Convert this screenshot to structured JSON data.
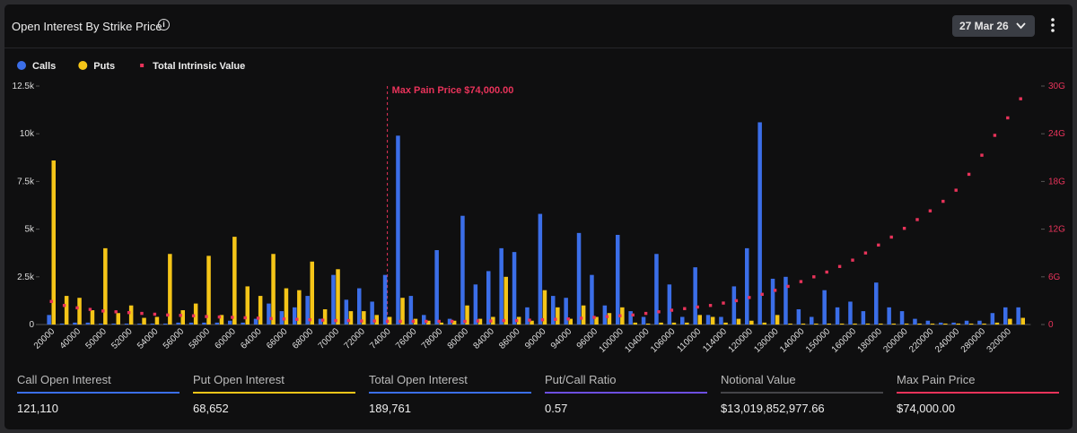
{
  "header": {
    "title": "Open Interest By Strike Price",
    "date": "27 Mar 26"
  },
  "chart_data": {
    "type": "bar",
    "categories": [
      "20000",
      null,
      "40000",
      null,
      "50000",
      null,
      "52000",
      null,
      "54000",
      null,
      "56000",
      null,
      "58000",
      null,
      "60000",
      null,
      "64000",
      null,
      "66000",
      null,
      "68000",
      null,
      "70000",
      null,
      "72000",
      null,
      "74000",
      null,
      "76000",
      null,
      "78000",
      null,
      "80000",
      null,
      "84000",
      null,
      "86000",
      null,
      "90000",
      null,
      "94000",
      null,
      "96000",
      null,
      "100000",
      null,
      "104000",
      null,
      "106000",
      null,
      "110000",
      null,
      "114000",
      null,
      "120000",
      null,
      "130000",
      null,
      "140000",
      null,
      "150000",
      null,
      "160000",
      null,
      "180000",
      null,
      "200000",
      null,
      "220000",
      null,
      "240000",
      null,
      "280000",
      null,
      "320000",
      null
    ],
    "series": [
      {
        "name": "Calls",
        "color": "#3b6ee8",
        "values": [
          500,
          50,
          100,
          100,
          50,
          50,
          50,
          50,
          50,
          50,
          100,
          100,
          100,
          100,
          200,
          100,
          300,
          1100,
          700,
          900,
          1500,
          300,
          2600,
          1300,
          1900,
          1200,
          2600,
          9900,
          1500,
          500,
          3900,
          300,
          5700,
          2100,
          2800,
          4000,
          3800,
          900,
          5800,
          1500,
          1400,
          4800,
          2600,
          1000,
          4700,
          700,
          400,
          3700,
          2100,
          400,
          3000,
          500,
          400,
          2000,
          4000,
          10600,
          2400,
          2500,
          800,
          400,
          1800,
          900,
          1200,
          700,
          2200,
          900,
          700,
          300,
          200,
          100,
          100,
          200,
          200,
          600,
          900,
          900
        ]
      },
      {
        "name": "Puts",
        "color": "#f5c518",
        "values": [
          8600,
          1500,
          1400,
          750,
          4000,
          600,
          1000,
          350,
          400,
          3700,
          750,
          1100,
          3600,
          500,
          4600,
          2000,
          1500,
          3700,
          1900,
          1800,
          3300,
          800,
          2900,
          700,
          700,
          500,
          400,
          1400,
          300,
          200,
          100,
          200,
          1000,
          300,
          400,
          2500,
          400,
          200,
          1800,
          900,
          300,
          1000,
          400,
          600,
          900,
          100,
          50,
          100,
          100,
          100,
          500,
          400,
          100,
          300,
          200,
          100,
          500,
          50,
          50,
          50,
          50,
          50,
          50,
          50,
          50,
          50,
          50,
          50,
          50,
          50,
          50,
          50,
          50,
          100,
          300,
          350
        ]
      },
      {
        "name": "Total Intrinsic Value",
        "color": "#e8335a",
        "axis": "y2",
        "values": [
          2900000000.0,
          2400000000.0,
          2100000000.0,
          1900000000.0,
          1700000000.0,
          1600000000.0,
          1500000000.0,
          1400000000.0,
          1300000000.0,
          1200000000.0,
          1150000000.0,
          1100000000.0,
          1000000000.0,
          950000000.0,
          900000000.0,
          850000000.0,
          800000000.0,
          750000000.0,
          700000000.0,
          650000000.0,
          600000000.0,
          550000000.0,
          500000000.0,
          500000000.0,
          450000000.0,
          450000000.0,
          400000000.0,
          400000000.0,
          400000000.0,
          400000000.0,
          400000000.0,
          400000000.0,
          400000000.0,
          450000000.0,
          450000000.0,
          500000000.0,
          500000000.0,
          550000000.0,
          600000000.0,
          650000000.0,
          700000000.0,
          800000000.0,
          900000000.0,
          1000000000.0,
          1100000000.0,
          1200000000.0,
          1400000000.0,
          1600000000.0,
          1800000000.0,
          2000000000.0,
          2200000000.0,
          2400000000.0,
          2700000000.0,
          3000000000.0,
          3400000000.0,
          3800000000.0,
          4300000000.0,
          4800000000.0,
          5400000000.0,
          6000000000.0,
          6600000000.0,
          7300000000.0,
          8100000000.0,
          9000000000.0,
          10000000000.0,
          11000000000.0,
          12100000000.0,
          13200000000.0,
          14300000000.0,
          15500000000.0,
          16900000000.0,
          18900000000.0,
          21300000000.0,
          23800000000.0,
          26000000000.0,
          28400000000.0
        ]
      }
    ],
    "ylim": [
      0,
      12500
    ],
    "yticks": [
      0,
      {
        "value": 2500,
        "label": "2.5k"
      },
      {
        "value": 5000,
        "label": "5k"
      },
      {
        "value": 7500,
        "label": "7.5k"
      },
      {
        "value": 10000,
        "label": "10k"
      },
      {
        "value": 12500,
        "label": "12.5k"
      }
    ],
    "y2lim": [
      0,
      30000000000
    ],
    "y2ticks": [
      0,
      {
        "value": 6000000000,
        "label": "6G"
      },
      {
        "value": 12000000000,
        "label": "12G"
      },
      {
        "value": 18000000000,
        "label": "18G"
      },
      {
        "value": 24000000000,
        "label": "24G"
      },
      {
        "value": 30000000000,
        "label": "30G"
      }
    ],
    "annotation": {
      "text": "Max Pain Price $74,000.00",
      "at": "74000"
    },
    "legend": "top-left"
  },
  "stats": [
    {
      "label": "Call Open Interest",
      "value": "121,110",
      "color": "#3b6ee8"
    },
    {
      "label": "Put Open Interest",
      "value": "68,652",
      "color": "#f5c518"
    },
    {
      "label": "Total Open Interest",
      "value": "189,761",
      "color": "#3b6ee8"
    },
    {
      "label": "Put/Call Ratio",
      "value": "0.57",
      "color": "#6d4fe0"
    },
    {
      "label": "Notional Value",
      "value": "$13,019,852,977.66",
      "color": "#444448"
    },
    {
      "label": "Max Pain Price",
      "value": "$74,000.00",
      "color": "#e8335a"
    }
  ]
}
